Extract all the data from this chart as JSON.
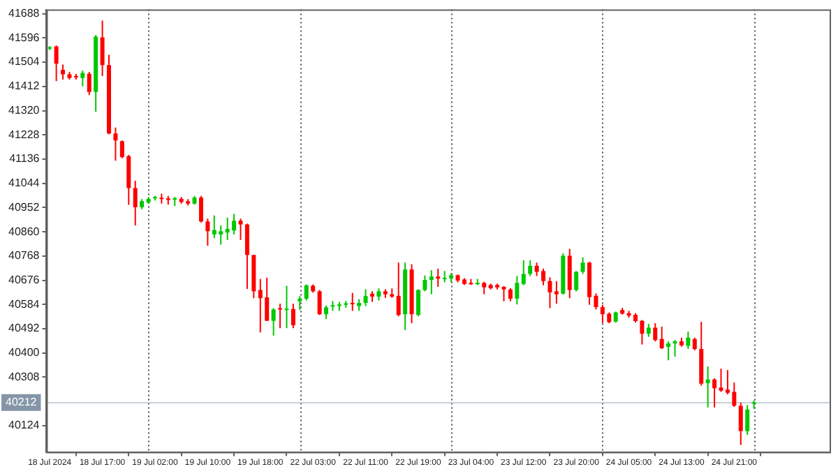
{
  "chart_data": {
    "type": "candlestick",
    "categories": [
      "18 Jul 2024",
      null,
      null,
      null,
      null,
      null,
      null,
      null,
      "18 Jul 17:00",
      null,
      null,
      null,
      null,
      null,
      null,
      null,
      "19 Jul 02:00",
      null,
      null,
      null,
      null,
      null,
      null,
      null,
      "19 Jul 10:00",
      null,
      null,
      null,
      null,
      null,
      null,
      null,
      "19 Jul 18:00",
      null,
      null,
      null,
      null,
      null,
      null,
      null,
      "22 Jul 03:00",
      null,
      null,
      null,
      null,
      null,
      null,
      null,
      "22 Jul 11:00",
      null,
      null,
      null,
      null,
      null,
      null,
      null,
      "22 Jul 19:00",
      null,
      null,
      null,
      null,
      null,
      null,
      null,
      "23 Jul 04:00",
      null,
      null,
      null,
      null,
      null,
      null,
      null,
      "23 Jul 12:00",
      null,
      null,
      null,
      null,
      null,
      null,
      null,
      "23 Jul 20:00",
      null,
      null,
      null,
      null,
      null,
      null,
      null,
      "24 Jul 05:00",
      null,
      null,
      null,
      null,
      null,
      null,
      null,
      "24 Jul 13:00",
      null,
      null,
      null,
      null,
      null,
      null,
      null,
      "24 Jul 21:00",
      null,
      null,
      null
    ],
    "ohlc": [
      [
        41555,
        41565,
        41550,
        41560
      ],
      [
        41564,
        41567,
        41432,
        41498
      ],
      [
        41475,
        41495,
        41438,
        41458
      ],
      [
        41458,
        41467,
        41438,
        41444
      ],
      [
        41450,
        41460,
        41438,
        41446
      ],
      [
        41444,
        41472,
        41412,
        41463
      ],
      [
        41460,
        41467,
        41379,
        41391
      ],
      [
        41391,
        41607,
        41316,
        41601
      ],
      [
        41598,
        41662,
        41451,
        41493
      ],
      [
        41493,
        41532,
        41230,
        41233
      ],
      [
        41233,
        41256,
        41130,
        41207
      ],
      [
        41204,
        41207,
        41139,
        41144
      ],
      [
        41147,
        41152,
        40962,
        41026
      ],
      [
        41026,
        41054,
        40884,
        40953
      ],
      [
        40953,
        40984,
        40946,
        40976
      ],
      [
        40971,
        40992,
        40967,
        40985
      ],
      [
        40987,
        40996,
        40979,
        40988
      ],
      [
        40988,
        41005,
        40967,
        40984
      ],
      [
        40987,
        40996,
        40963,
        40981
      ],
      [
        40982,
        40992,
        40958,
        40984
      ],
      [
        40985,
        40992,
        40967,
        40973
      ],
      [
        40976,
        40984,
        40960,
        40967
      ],
      [
        40967,
        40996,
        40963,
        40990
      ],
      [
        40990,
        40996,
        40895,
        40899
      ],
      [
        40899,
        40910,
        40807,
        40862
      ],
      [
        40850,
        40922,
        40836,
        40867
      ],
      [
        40850,
        40884,
        40811,
        40862
      ],
      [
        40857,
        40914,
        40829,
        40871
      ],
      [
        40865,
        40928,
        40850,
        40902
      ],
      [
        40902,
        40910,
        40829,
        40888
      ],
      [
        40888,
        40891,
        40643,
        40772
      ],
      [
        40772,
        40772,
        40608,
        40634
      ],
      [
        40639,
        40681,
        40478,
        40608
      ],
      [
        40611,
        40686,
        40522,
        40522
      ],
      [
        40522,
        40570,
        40466,
        40565
      ],
      [
        40568,
        40587,
        40494,
        40565
      ],
      [
        40563,
        40655,
        40494,
        40566
      ],
      [
        40567,
        40587,
        40494,
        40505
      ],
      [
        40596,
        40616,
        40563,
        40606
      ],
      [
        40606,
        40660,
        40599,
        40657
      ],
      [
        40655,
        40660,
        40629,
        40634
      ],
      [
        40634,
        40639,
        40544,
        40547
      ],
      [
        40547,
        40580,
        40529,
        40573
      ],
      [
        40576,
        40597,
        40560,
        40580
      ],
      [
        40578,
        40594,
        40560,
        40584
      ],
      [
        40583,
        40597,
        40572,
        40587
      ],
      [
        40589,
        40628,
        40560,
        40585
      ],
      [
        40578,
        40604,
        40560,
        40590
      ],
      [
        40590,
        40642,
        40578,
        40616
      ],
      [
        40625,
        40634,
        40594,
        40614
      ],
      [
        40614,
        40645,
        40599,
        40634
      ],
      [
        40634,
        40642,
        40609,
        40623
      ],
      [
        40623,
        40645,
        40609,
        40614
      ],
      [
        40617,
        40743,
        40539,
        40544
      ],
      [
        40547,
        40743,
        40487,
        40717
      ],
      [
        40717,
        40737,
        40513,
        40547
      ],
      [
        40544,
        40642,
        40539,
        40639
      ],
      [
        40639,
        40694,
        40634,
        40677
      ],
      [
        40677,
        40714,
        40623,
        40690
      ],
      [
        40690,
        40720,
        40651,
        40682
      ],
      [
        40680,
        40711,
        40668,
        40683
      ],
      [
        40683,
        40703,
        40668,
        40695
      ],
      [
        40695,
        40698,
        40668,
        40675
      ],
      [
        40679,
        40684,
        40658,
        40662
      ],
      [
        40664,
        40681,
        40658,
        40661
      ],
      [
        40661,
        40681,
        40658,
        40666
      ],
      [
        40666,
        40670,
        40623,
        40649
      ],
      [
        40658,
        40663,
        40641,
        40646
      ],
      [
        40658,
        40663,
        40641,
        40649
      ],
      [
        40651,
        40654,
        40596,
        40641
      ],
      [
        40641,
        40646,
        40596,
        40606
      ],
      [
        40606,
        40692,
        40584,
        40666
      ],
      [
        40662,
        40752,
        40657,
        40700
      ],
      [
        40700,
        40752,
        40692,
        40731
      ],
      [
        40731,
        40743,
        40692,
        40708
      ],
      [
        40711,
        40720,
        40657,
        40673
      ],
      [
        40673,
        40687,
        40570,
        40630
      ],
      [
        40634,
        40673,
        40587,
        40623
      ],
      [
        40625,
        40778,
        40622,
        40769
      ],
      [
        40769,
        40795,
        40608,
        40639
      ],
      [
        40639,
        40711,
        40634,
        40708
      ],
      [
        40708,
        40763,
        40700,
        40743
      ],
      [
        40743,
        40746,
        40583,
        40612
      ],
      [
        40617,
        40626,
        40565,
        40574
      ],
      [
        40574,
        40583,
        40513,
        40547
      ],
      [
        40549,
        40554,
        40513,
        40517
      ],
      [
        40519,
        40557,
        40515,
        40554
      ],
      [
        40563,
        40571,
        40546,
        40549
      ],
      [
        40551,
        40560,
        40534,
        40542
      ],
      [
        40545,
        40551,
        40515,
        40521
      ],
      [
        40522,
        40525,
        40432,
        40473
      ],
      [
        40473,
        40510,
        40461,
        40496
      ],
      [
        40496,
        40513,
        40444,
        40449
      ],
      [
        40453,
        40500,
        40415,
        40418
      ],
      [
        40423,
        40444,
        40372,
        40436
      ],
      [
        40436,
        40449,
        40386,
        40444
      ],
      [
        40444,
        40458,
        40424,
        40429
      ],
      [
        40427,
        40481,
        40415,
        40458
      ],
      [
        40453,
        40458,
        40410,
        40415
      ],
      [
        40415,
        40518,
        40276,
        40283
      ],
      [
        40285,
        40349,
        40193,
        40299
      ],
      [
        40299,
        40304,
        40193,
        40266
      ],
      [
        40269,
        40340,
        40252,
        40257
      ],
      [
        40261,
        40335,
        40243,
        40249
      ],
      [
        40252,
        40287,
        40195,
        40200
      ],
      [
        40199,
        40211,
        40051,
        40103
      ],
      [
        40103,
        40202,
        40089,
        40185
      ],
      [
        40207,
        40220,
        40188,
        40212
      ]
    ],
    "ylim": [
      40024,
      41704
    ],
    "yticks": [
      40124,
      40308,
      40400,
      40492,
      40584,
      40676,
      40768,
      40860,
      40952,
      41044,
      41136,
      41228,
      41320,
      41412,
      41504,
      41596,
      41688
    ],
    "ref_lines": [
      {
        "axis": "y",
        "value": 40212,
        "label": "40212",
        "color": "#c8d0d8",
        "line_style": "solid"
      }
    ]
  }
}
